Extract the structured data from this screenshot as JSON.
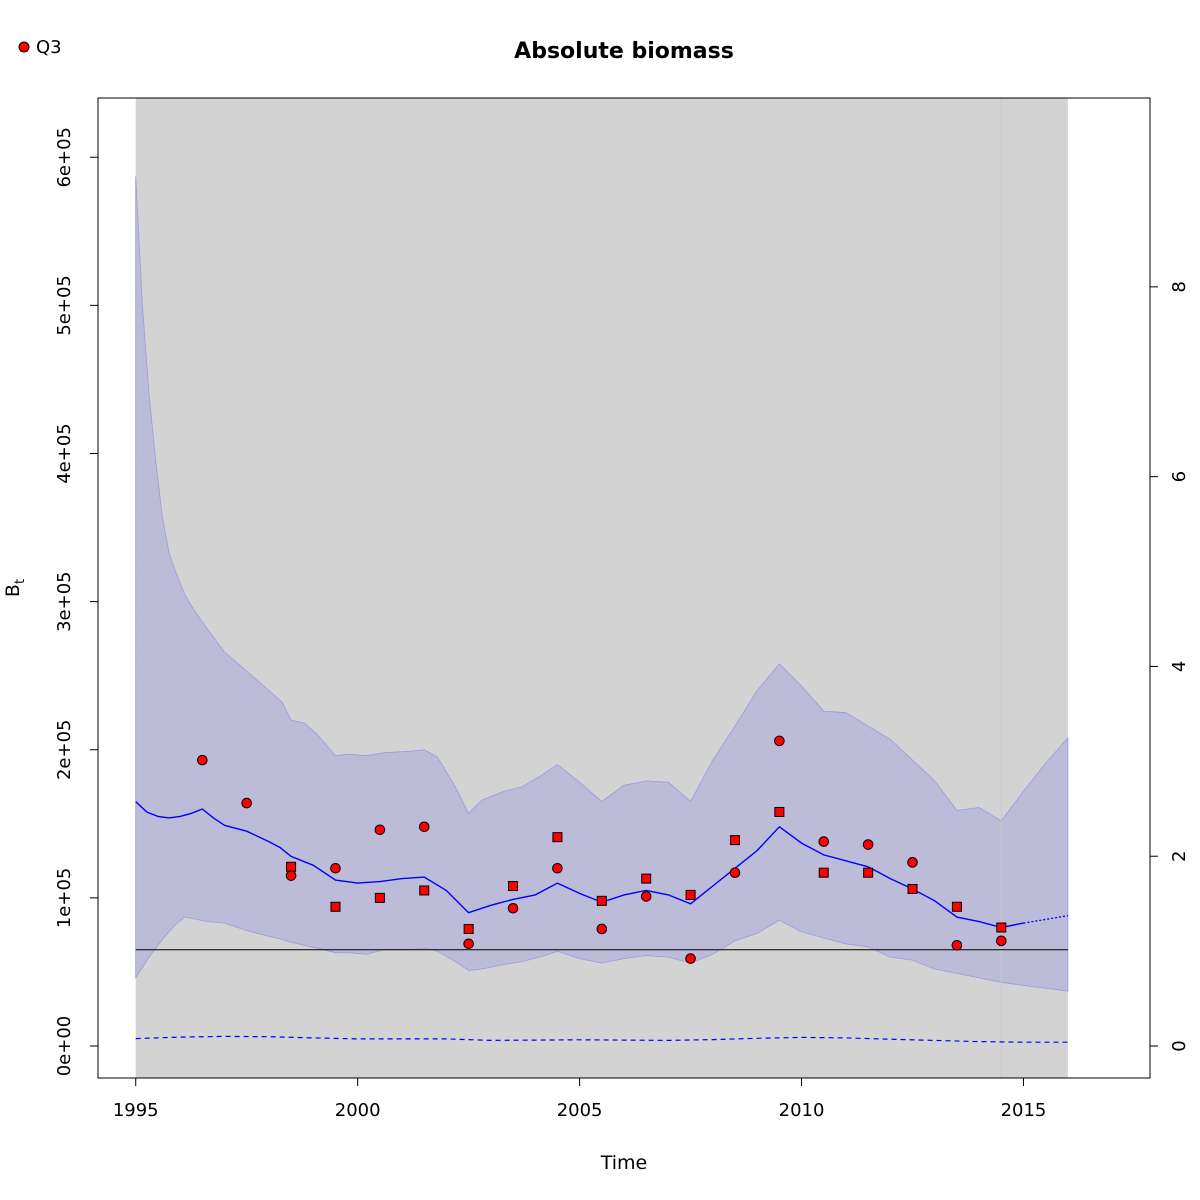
{
  "chart_data": {
    "type": "line",
    "title": "Absolute biomass",
    "xlabel": "Time",
    "ylabel": "B",
    "ylabel_subscript": "t",
    "xlim": [
      1994.15,
      2017.85
    ],
    "ylim": [
      -21600,
      640000
    ],
    "y2lim": [
      -0.337,
      9.99
    ],
    "x_ticks": [
      1995,
      2000,
      2005,
      2010,
      2015
    ],
    "x_tick_labels": [
      "1995",
      "2000",
      "2005",
      "2010",
      "2015"
    ],
    "y_ticks": [
      0,
      100000,
      200000,
      300000,
      400000,
      500000,
      600000
    ],
    "y_tick_labels": [
      "0e+00",
      "1e+05",
      "2e+05",
      "3e+05",
      "4e+05",
      "5e+05",
      "6e+05"
    ],
    "y2_ticks": [
      0,
      2,
      4,
      6,
      8
    ],
    "y2_tick_labels": [
      "0",
      "2",
      "4",
      "6",
      "8"
    ],
    "legend": {
      "position": "top-left",
      "entries": [
        {
          "label": "Q3",
          "color": "#ff0000",
          "marker": "circle"
        }
      ]
    },
    "shaded_region": {
      "x_start": 1995,
      "x_end": 2016,
      "color": "#d3d3d3"
    },
    "vertical_line": {
      "x": 2014.5,
      "color": "#c8c8c8"
    },
    "reference_line": {
      "y": 65000,
      "color": "#000000"
    },
    "biomass_estimate": {
      "color": "#0000ff",
      "x": [
        1995,
        1995.25,
        1995.5,
        1995.75,
        1996,
        1996.25,
        1996.5,
        1996.75,
        1997,
        1997.5,
        1998,
        1998.25,
        1998.5,
        1999,
        1999.5,
        2000,
        2000.5,
        2001,
        2001.5,
        2002,
        2002.5,
        2003,
        2003.5,
        2004,
        2004.5,
        2005,
        2005.5,
        2006,
        2006.5,
        2007,
        2007.5,
        2008,
        2008.5,
        2009,
        2009.5,
        2010,
        2010.5,
        2011,
        2011.5,
        2012,
        2012.5,
        2013,
        2013.5,
        2014,
        2014.5,
        2015
      ],
      "y": [
        165000,
        158000,
        155000,
        154000,
        155000,
        157000,
        160000,
        154000,
        149000,
        145000,
        138000,
        134000,
        128000,
        122000,
        112000,
        110000,
        111000,
        113000,
        114000,
        105000,
        90000,
        95000,
        99000,
        102000,
        110000,
        103000,
        97000,
        102000,
        105000,
        102000,
        96000,
        108000,
        120000,
        132000,
        148000,
        137000,
        129000,
        125000,
        121000,
        113000,
        106000,
        98000,
        87000,
        84000,
        80000,
        83000
      ]
    },
    "biomass_projection": {
      "color": "#0000ff",
      "style": "dotted",
      "x": [
        2015,
        2016
      ],
      "y": [
        83000,
        88000
      ]
    },
    "ci_band": {
      "color": "#bcbcd9",
      "x": [
        1995,
        1995.15,
        1995.3,
        1995.45,
        1995.6,
        1995.75,
        1995.9,
        1996.1,
        1996.3,
        1996.6,
        1997,
        1997.5,
        1998,
        1998.3,
        1998.5,
        1998.8,
        1999.1,
        1999.5,
        1999.8,
        2000.2,
        2000.6,
        2001.2,
        2001.5,
        2001.8,
        2002.2,
        2002.5,
        2002.8,
        2003.3,
        2003.7,
        2004.1,
        2004.5,
        2005,
        2005.5,
        2006,
        2006.5,
        2007,
        2007.5,
        2008,
        2008.5,
        2009,
        2009.5,
        2010,
        2010.5,
        2011,
        2011.5,
        2012,
        2012.5,
        2013,
        2013.5,
        2014,
        2014.5,
        2015,
        2015.5,
        2016
      ],
      "upper": [
        587000,
        500000,
        440000,
        395000,
        357000,
        333000,
        320000,
        305000,
        295000,
        282000,
        266000,
        253000,
        240000,
        232000,
        220000,
        218000,
        210000,
        196000,
        197000,
        196000,
        198000,
        199000,
        200000,
        195000,
        175000,
        157000,
        166000,
        172000,
        175000,
        182000,
        190000,
        178000,
        165000,
        176000,
        179000,
        178000,
        165000,
        193000,
        216000,
        240000,
        258000,
        243000,
        226000,
        225000,
        216000,
        207000,
        193000,
        179000,
        159000,
        161000,
        152000,
        172000,
        191000,
        208000
      ],
      "lower": [
        46000,
        53000,
        60000,
        66000,
        72000,
        77000,
        82000,
        87000,
        86000,
        84000,
        83000,
        78000,
        74000,
        72000,
        70000,
        68000,
        66000,
        63000,
        63000,
        62000,
        65000,
        65000,
        66000,
        64000,
        57000,
        51000,
        52000,
        55000,
        57000,
        60000,
        64000,
        59000,
        56000,
        59000,
        61000,
        60000,
        56000,
        62000,
        71000,
        76000,
        85000,
        77000,
        73000,
        69000,
        67000,
        60000,
        58000,
        52000,
        49000,
        46000,
        43000,
        41000,
        39000,
        37000
      ]
    },
    "lower_dashed": {
      "color": "#0000ff",
      "style": "dashed",
      "x": [
        1995,
        1996,
        1997,
        1998,
        1999,
        2000,
        2001,
        2002,
        2003,
        2004,
        2005,
        2006,
        2007,
        2008,
        2009,
        2010,
        2011,
        2012,
        2013,
        2014,
        2015,
        2016
      ],
      "y": [
        5000,
        6000,
        6500,
        6300,
        5500,
        4800,
        4800,
        4800,
        3800,
        4000,
        4200,
        4000,
        3800,
        4300,
        5200,
        5800,
        5500,
        4600,
        3800,
        3000,
        2600,
        2600
      ]
    },
    "index_circles": {
      "color": "#ff0000",
      "name": "Q3",
      "x": [
        1996.5,
        1997.5,
        1998.5,
        1999.5,
        2000.5,
        2001.5,
        2002.5,
        2003.5,
        2004.5,
        2005.5,
        2006.5,
        2007.5,
        2008.5,
        2009.5,
        2010.5,
        2011.5,
        2012.5,
        2013.5,
        2014.5
      ],
      "y": [
        193000,
        164000,
        115000,
        120000,
        146000,
        148000,
        69000,
        93000,
        120000,
        79000,
        101000,
        59000,
        117000,
        206000,
        138000,
        136000,
        124000,
        68000,
        71000
      ]
    },
    "index_squares": {
      "color": "#ff0000",
      "x": [
        1998.5,
        1999.5,
        2000.5,
        2001.5,
        2002.5,
        2003.5,
        2004.5,
        2005.5,
        2006.5,
        2007.5,
        2008.5,
        2009.5,
        2010.5,
        2011.5,
        2012.5,
        2013.5,
        2014.5
      ],
      "y": [
        121000,
        94000,
        100000,
        105000,
        79000,
        108000,
        141000,
        98000,
        113000,
        102000,
        139000,
        158000,
        117000,
        117000,
        106000,
        94000,
        80000
      ]
    }
  }
}
